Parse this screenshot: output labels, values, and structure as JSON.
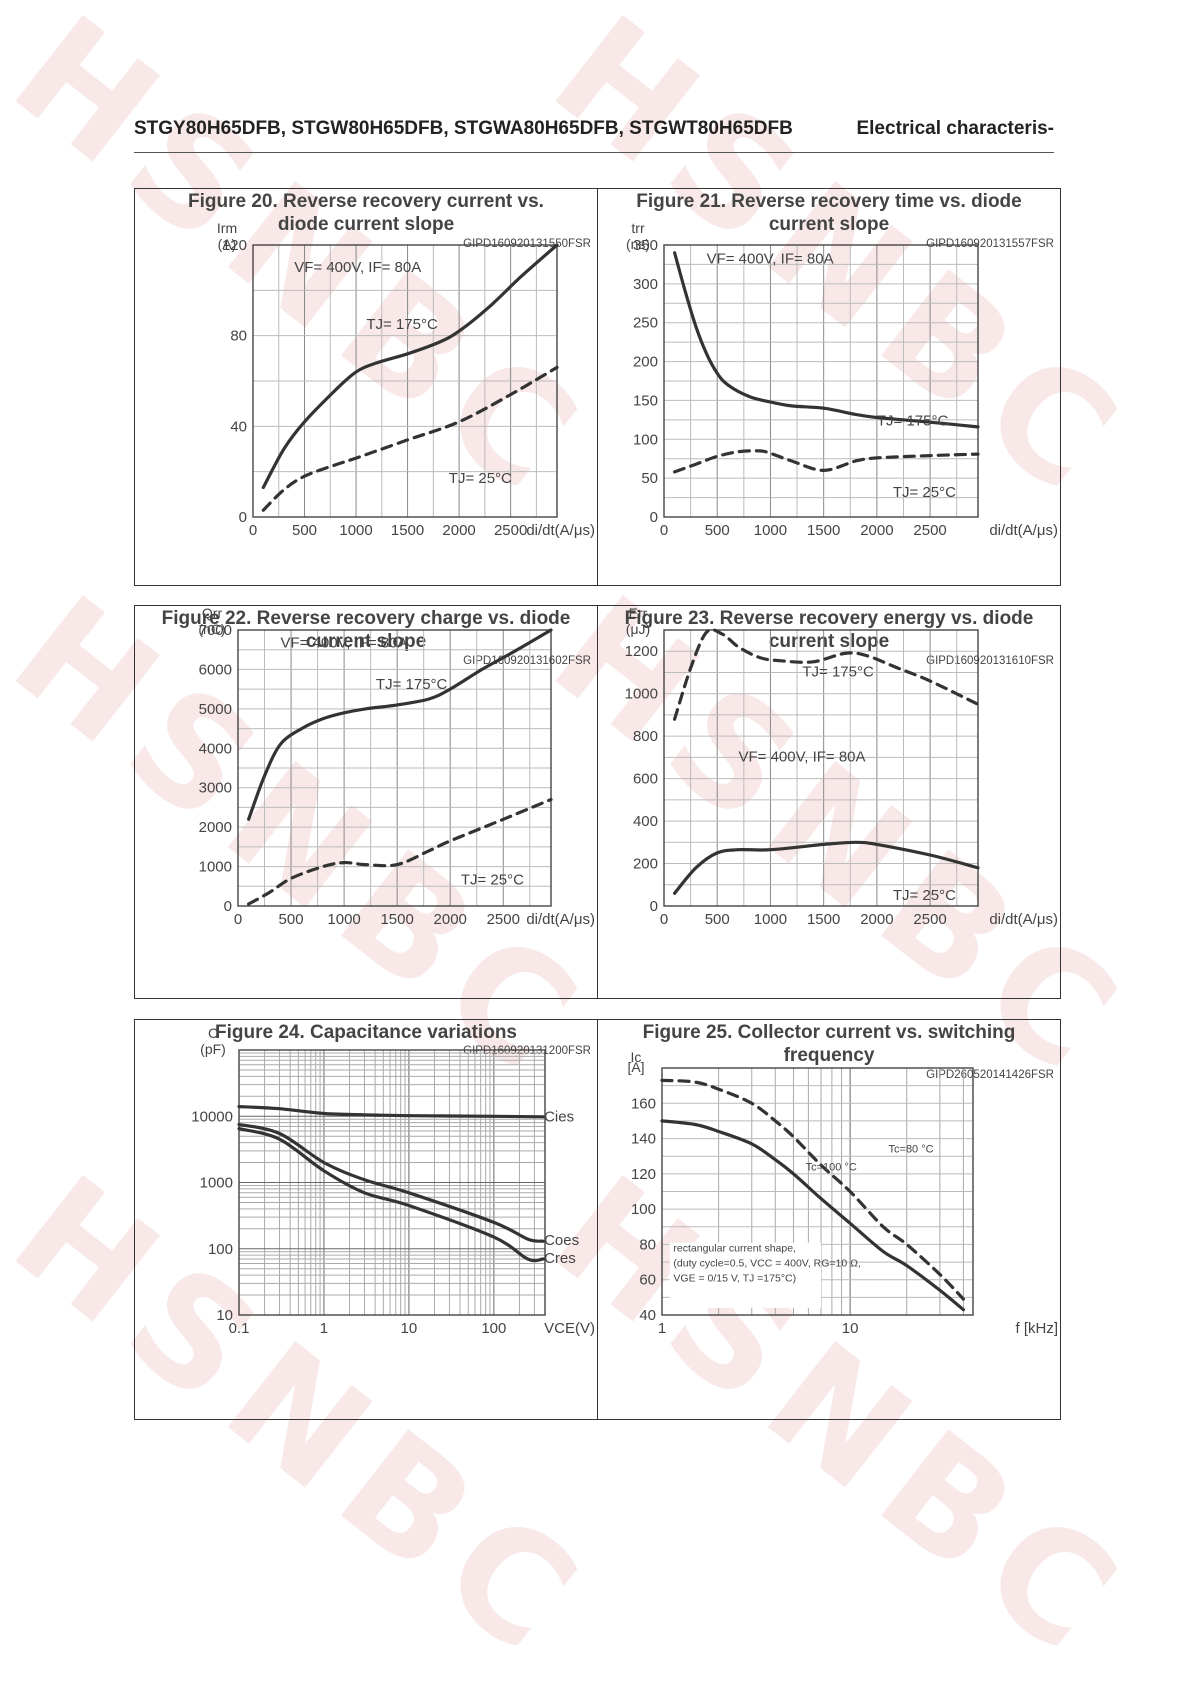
{
  "header": {
    "parts": "STGY80H65DFB, STGW80H65DFB, STGWA80H65DFB, STGWT80H65DFB",
    "section": "Electrical characteris-"
  },
  "watermark": {
    "text": "HSNBC",
    "color": "#da6e6e"
  },
  "chart_data": [
    {
      "type": "line",
      "title": "Figure 20. Reverse recovery current vs. diode current slope",
      "code": "GIPD160920131550FSR",
      "ylabel": "Irm (A)",
      "xlabel": "di/dt(A/μs)",
      "condition": "VF= 400V, IF= 80A",
      "xlim": [
        0,
        2950
      ],
      "ylim": [
        0,
        120
      ],
      "xticks": [
        0,
        500,
        1000,
        1500,
        2000,
        2500
      ],
      "yticks": [
        0,
        40,
        80,
        120
      ],
      "series": [
        {
          "name": "TJ= 175°C",
          "style": "solid",
          "x": [
            100,
            300,
            500,
            800,
            1000,
            1200,
            1500,
            1800,
            2000,
            2300,
            2600,
            2950
          ],
          "y": [
            13,
            30,
            42,
            56,
            64,
            68,
            72,
            77,
            82,
            93,
            106,
            120
          ]
        },
        {
          "name": "TJ= 25°C",
          "style": "dashed",
          "x": [
            100,
            300,
            500,
            800,
            1000,
            1500,
            2000,
            2500,
            2950
          ],
          "y": [
            3,
            12,
            18,
            23,
            26,
            34,
            42,
            54,
            66
          ]
        }
      ]
    },
    {
      "type": "line",
      "title": "Figure 21. Reverse recovery time vs. diode current slope",
      "code": "GIPD160920131557FSR",
      "ylabel": "trr (ns)",
      "xlabel": "di/dt(A/μs)",
      "condition": "VF= 400V, IF= 80A",
      "xlim": [
        0,
        2950
      ],
      "ylim": [
        0,
        350
      ],
      "xticks": [
        0,
        500,
        1000,
        1500,
        2000,
        2500
      ],
      "yticks": [
        0,
        50,
        100,
        150,
        200,
        250,
        300,
        350
      ],
      "series": [
        {
          "name": "TJ= 175°C",
          "style": "solid",
          "x": [
            100,
            200,
            300,
            400,
            500,
            600,
            800,
            1000,
            1200,
            1500,
            1800,
            2000,
            2500,
            2950
          ],
          "y": [
            340,
            290,
            245,
            210,
            185,
            170,
            155,
            148,
            143,
            140,
            132,
            128,
            122,
            116
          ]
        },
        {
          "name": "TJ= 25°C",
          "style": "dashed",
          "x": [
            100,
            300,
            500,
            700,
            900,
            1000,
            1200,
            1500,
            1800,
            2000,
            2500,
            2950
          ],
          "y": [
            58,
            68,
            78,
            84,
            85,
            82,
            72,
            60,
            72,
            76,
            79,
            81
          ]
        }
      ]
    },
    {
      "type": "line",
      "title": "Figure 22. Reverse recovery charge vs. diode current slope",
      "code": "GIPD160920131602FSR",
      "ylabel": "Qrr (nC)",
      "xlabel": "di/dt(A/μs)",
      "condition": "VF= 400V, IF= 80A",
      "xlim": [
        0,
        2950
      ],
      "ylim": [
        0,
        7000
      ],
      "xticks": [
        0,
        500,
        1000,
        1500,
        2000,
        2500
      ],
      "yticks": [
        0,
        1000,
        2000,
        3000,
        4000,
        5000,
        6000,
        7000
      ],
      "series": [
        {
          "name": "TJ= 175°C",
          "style": "solid",
          "x": [
            100,
            250,
            400,
            600,
            800,
            1000,
            1200,
            1500,
            1800,
            2000,
            2300,
            2600,
            2950
          ],
          "y": [
            2200,
            3300,
            4100,
            4500,
            4750,
            4900,
            5000,
            5100,
            5250,
            5500,
            6000,
            6450,
            7000
          ]
        },
        {
          "name": "TJ= 25°C",
          "style": "dashed",
          "x": [
            100,
            300,
            500,
            800,
            1000,
            1200,
            1500,
            1800,
            2000,
            2500,
            2950
          ],
          "y": [
            50,
            350,
            700,
            1000,
            1100,
            1050,
            1050,
            1400,
            1650,
            2200,
            2700
          ]
        }
      ]
    },
    {
      "type": "line",
      "title": "Figure 23. Reverse recovery energy vs. diode current slope",
      "code": "GIPD160920131610FSR",
      "ylabel": "Err (μJ)",
      "xlabel": "di/dt(A/μs)",
      "condition": "VF= 400V, IF= 80A",
      "xlim": [
        0,
        2950
      ],
      "ylim": [
        0,
        1300
      ],
      "xticks": [
        0,
        500,
        1000,
        1500,
        2000,
        2500
      ],
      "yticks": [
        0,
        200,
        400,
        600,
        800,
        1000,
        1200
      ],
      "series": [
        {
          "name": "TJ= 175°C",
          "style": "dashed",
          "x": [
            100,
            250,
            400,
            550,
            700,
            900,
            1100,
            1400,
            1700,
            1900,
            2200,
            2500,
            2950
          ],
          "y": [
            880,
            1120,
            1290,
            1280,
            1220,
            1170,
            1155,
            1150,
            1190,
            1180,
            1120,
            1060,
            950
          ]
        },
        {
          "name": "",
          "style": "solid",
          "x": [
            100,
            300,
            500,
            700,
            1000,
            1500,
            1800,
            2000,
            2500,
            2950
          ],
          "y": [
            60,
            180,
            250,
            265,
            265,
            290,
            300,
            290,
            240,
            180
          ]
        }
      ]
    },
    {
      "type": "line",
      "title": "Figure 24. Capacitance variations",
      "code": "GIPD160920131200FSR",
      "ylabel": "C (pF)",
      "xlabel": "VCE(V)",
      "xscale": "log",
      "yscale": "log",
      "xlim": [
        0.1,
        400
      ],
      "ylim": [
        10,
        100000
      ],
      "xticks": [
        0.1,
        1,
        10,
        100
      ],
      "yticks": [
        10,
        100,
        1000,
        10000
      ],
      "series": [
        {
          "name": "Cies",
          "style": "solid",
          "x": [
            0.1,
            0.3,
            1,
            3,
            10,
            100,
            380
          ],
          "y": [
            14000,
            13000,
            11000,
            10500,
            10200,
            10000,
            9800
          ]
        },
        {
          "name": "Coes",
          "style": "solid",
          "x": [
            0.1,
            0.3,
            1,
            3,
            10,
            100,
            250,
            380
          ],
          "y": [
            7500,
            5500,
            2000,
            1100,
            700,
            250,
            140,
            130
          ]
        },
        {
          "name": "Cres",
          "style": "solid",
          "x": [
            0.1,
            0.3,
            1,
            3,
            10,
            100,
            250,
            380
          ],
          "y": [
            6500,
            4500,
            1500,
            700,
            450,
            150,
            70,
            70
          ]
        }
      ]
    },
    {
      "type": "line",
      "title": "Figure 25. Collector current vs. switching frequency",
      "code": "GIPD260520141426FSR",
      "ylabel": "Ic [A]",
      "xlabel": "f [kHz]",
      "xscale": "log",
      "xlim": [
        1,
        45
      ],
      "ylim": [
        40,
        180
      ],
      "xticks": [
        1,
        10
      ],
      "yticks": [
        40,
        60,
        80,
        100,
        120,
        140,
        160
      ],
      "note": [
        "rectangular current shape,",
        "(duty cycle=0.5, VCC = 400V, RG=10 Ω,",
        "VGE = 0/15 V, TJ =175°C)"
      ],
      "series": [
        {
          "name": "Tc=80 °C",
          "style": "dashed",
          "x": [
            1,
            1.5,
            2,
            3,
            4,
            5,
            7,
            10,
            15,
            20,
            30,
            40
          ],
          "y": [
            173,
            172,
            168,
            160,
            150,
            141,
            125,
            110,
            90,
            80,
            63,
            49
          ]
        },
        {
          "name": "Tc=100 °C",
          "style": "solid",
          "x": [
            1,
            1.5,
            2,
            3,
            4,
            5,
            7,
            10,
            15,
            20,
            30,
            40
          ],
          "y": [
            150,
            148,
            144,
            137,
            128,
            120,
            106,
            92,
            76,
            68,
            54,
            43
          ]
        }
      ]
    }
  ]
}
